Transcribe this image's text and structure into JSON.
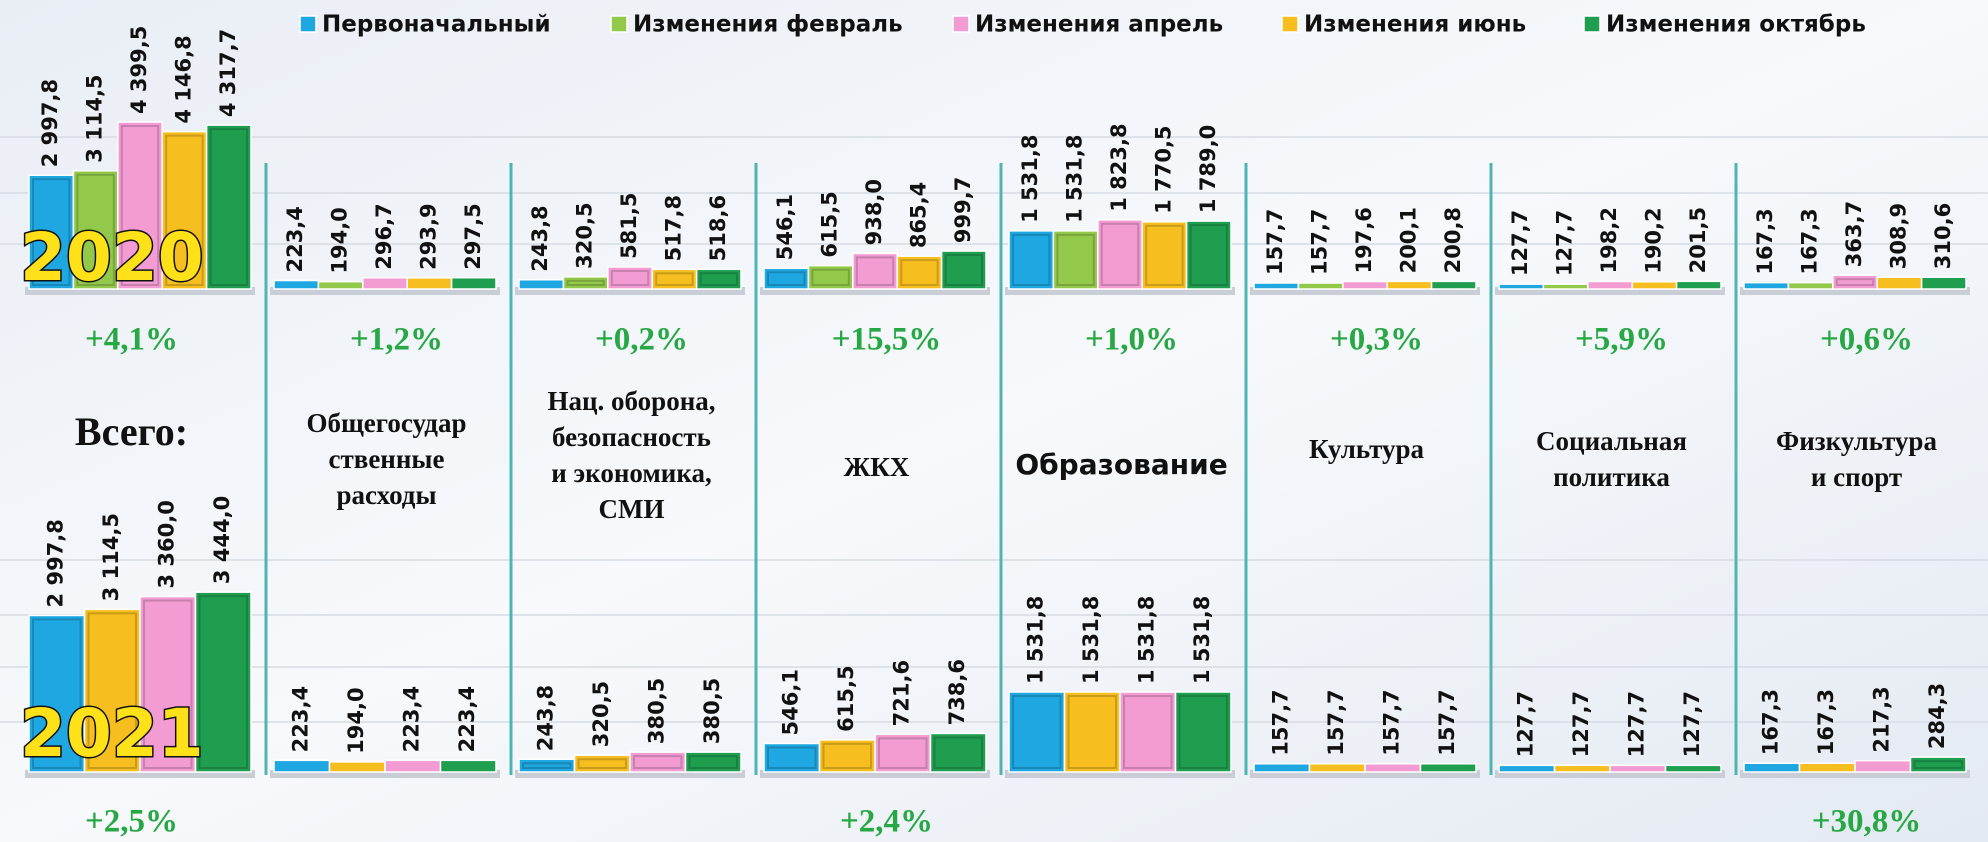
{
  "chart_data": [
    {
      "type": "bar",
      "title": "2020",
      "categories": [
        [
          "Всего:"
        ],
        [
          "Общегосудар",
          "ственные",
          "расходы"
        ],
        [
          "Нац. оборона,",
          "безопасность",
          "и экономика,",
          "СМИ"
        ],
        [
          "ЖКХ"
        ],
        [
          "Образование"
        ],
        [
          "Культура"
        ],
        [
          "Социальная",
          "политика"
        ],
        [
          "Физкультура",
          "и спорт"
        ]
      ],
      "series": [
        {
          "name": "Первоначальный",
          "color": "#1ea7e1",
          "values": [
            2997.8,
            223.4,
            243.8,
            546.1,
            1531.8,
            157.7,
            127.7,
            167.3
          ],
          "value_labels": [
            "2 997,8",
            "223,4",
            "243,8",
            "546,1",
            "1 531,8",
            "157,7",
            "127,7",
            "167,3"
          ]
        },
        {
          "name": "Изменения февраль",
          "color": "#93c94b",
          "values": [
            3114.5,
            194.0,
            320.5,
            615.5,
            1531.8,
            157.7,
            127.7,
            167.3
          ],
          "value_labels": [
            "3 114,5",
            "194,0",
            "320,5",
            "615,5",
            "1 531,8",
            "157,7",
            "127,7",
            "167,3"
          ]
        },
        {
          "name": "Изменения апрель",
          "color": "#f39cd3",
          "values": [
            4399.5,
            296.7,
            581.5,
            938.0,
            1823.8,
            197.6,
            198.2,
            363.7
          ],
          "value_labels": [
            "4 399,5",
            "296,7",
            "581,5",
            "938,0",
            "1 823,8",
            "197,6",
            "198,2",
            "363,7"
          ]
        },
        {
          "name": "Изменения июнь",
          "color": "#f6be1f",
          "values": [
            4146.8,
            293.9,
            517.8,
            865.4,
            1770.5,
            200.1,
            190.2,
            308.9
          ],
          "value_labels": [
            "4 146,8",
            "293,9",
            "517,8",
            "865,4",
            "1 770,5",
            "200,1",
            "190,2",
            "308,9"
          ]
        },
        {
          "name": "Изменения октябрь",
          "color": "#1f9e50",
          "values": [
            4317.7,
            297.5,
            518.6,
            999.7,
            1789.0,
            200.8,
            201.5,
            310.6
          ],
          "value_labels": [
            "4 317,7",
            "297,5",
            "518,6",
            "999,7",
            "1 789,0",
            "200,8",
            "201,5",
            "310,6"
          ]
        }
      ],
      "annotations": [
        "+4,1%",
        "+1,2%",
        "+0,2%",
        "+15,5%",
        "+1,0%",
        "+0,3%",
        "+5,9%",
        "+0,6%"
      ],
      "ylim": [
        0,
        5270
      ]
    },
    {
      "type": "bar",
      "title": "2021",
      "series": [
        {
          "color": "#1ea7e1",
          "values": [
            2997.8,
            223.4,
            243.8,
            546.1,
            1531.8,
            157.7,
            127.7,
            167.3
          ],
          "value_labels": [
            "2 997,8",
            "223,4",
            "243,8",
            "546,1",
            "1 531,8",
            "157,7",
            "127,7",
            "167,3"
          ]
        },
        {
          "color": "#f6be1f",
          "values": [
            3114.5,
            194.0,
            320.5,
            615.5,
            1531.8,
            157.7,
            127.7,
            167.3
          ],
          "value_labels": [
            "3 114,5",
            "194,0",
            "320,5",
            "615,5",
            "1 531,8",
            "157,7",
            "127,7",
            "167,3"
          ]
        },
        {
          "color": "#f39cd3",
          "values": [
            3360.0,
            223.4,
            380.5,
            721.6,
            1531.8,
            157.7,
            127.7,
            217.3
          ],
          "value_labels": [
            "3 360,0",
            "223,4",
            "380,5",
            "721,6",
            "1 531,8",
            "157,7",
            "127,7",
            "217,3"
          ]
        },
        {
          "color": "#1f9e50",
          "values": [
            3444.0,
            223.4,
            380.5,
            738.6,
            1531.8,
            157.7,
            127.7,
            284.3
          ],
          "value_labels": [
            "3 444,0",
            "223,4",
            "380,5",
            "738,6",
            "1 531,8",
            "157,7",
            "127,7",
            "284,3"
          ]
        }
      ],
      "annotations": [
        "+2,5%",
        null,
        null,
        "+2,4%",
        null,
        null,
        null,
        "+30,8%"
      ],
      "ylim": [
        0,
        3830
      ]
    }
  ]
}
